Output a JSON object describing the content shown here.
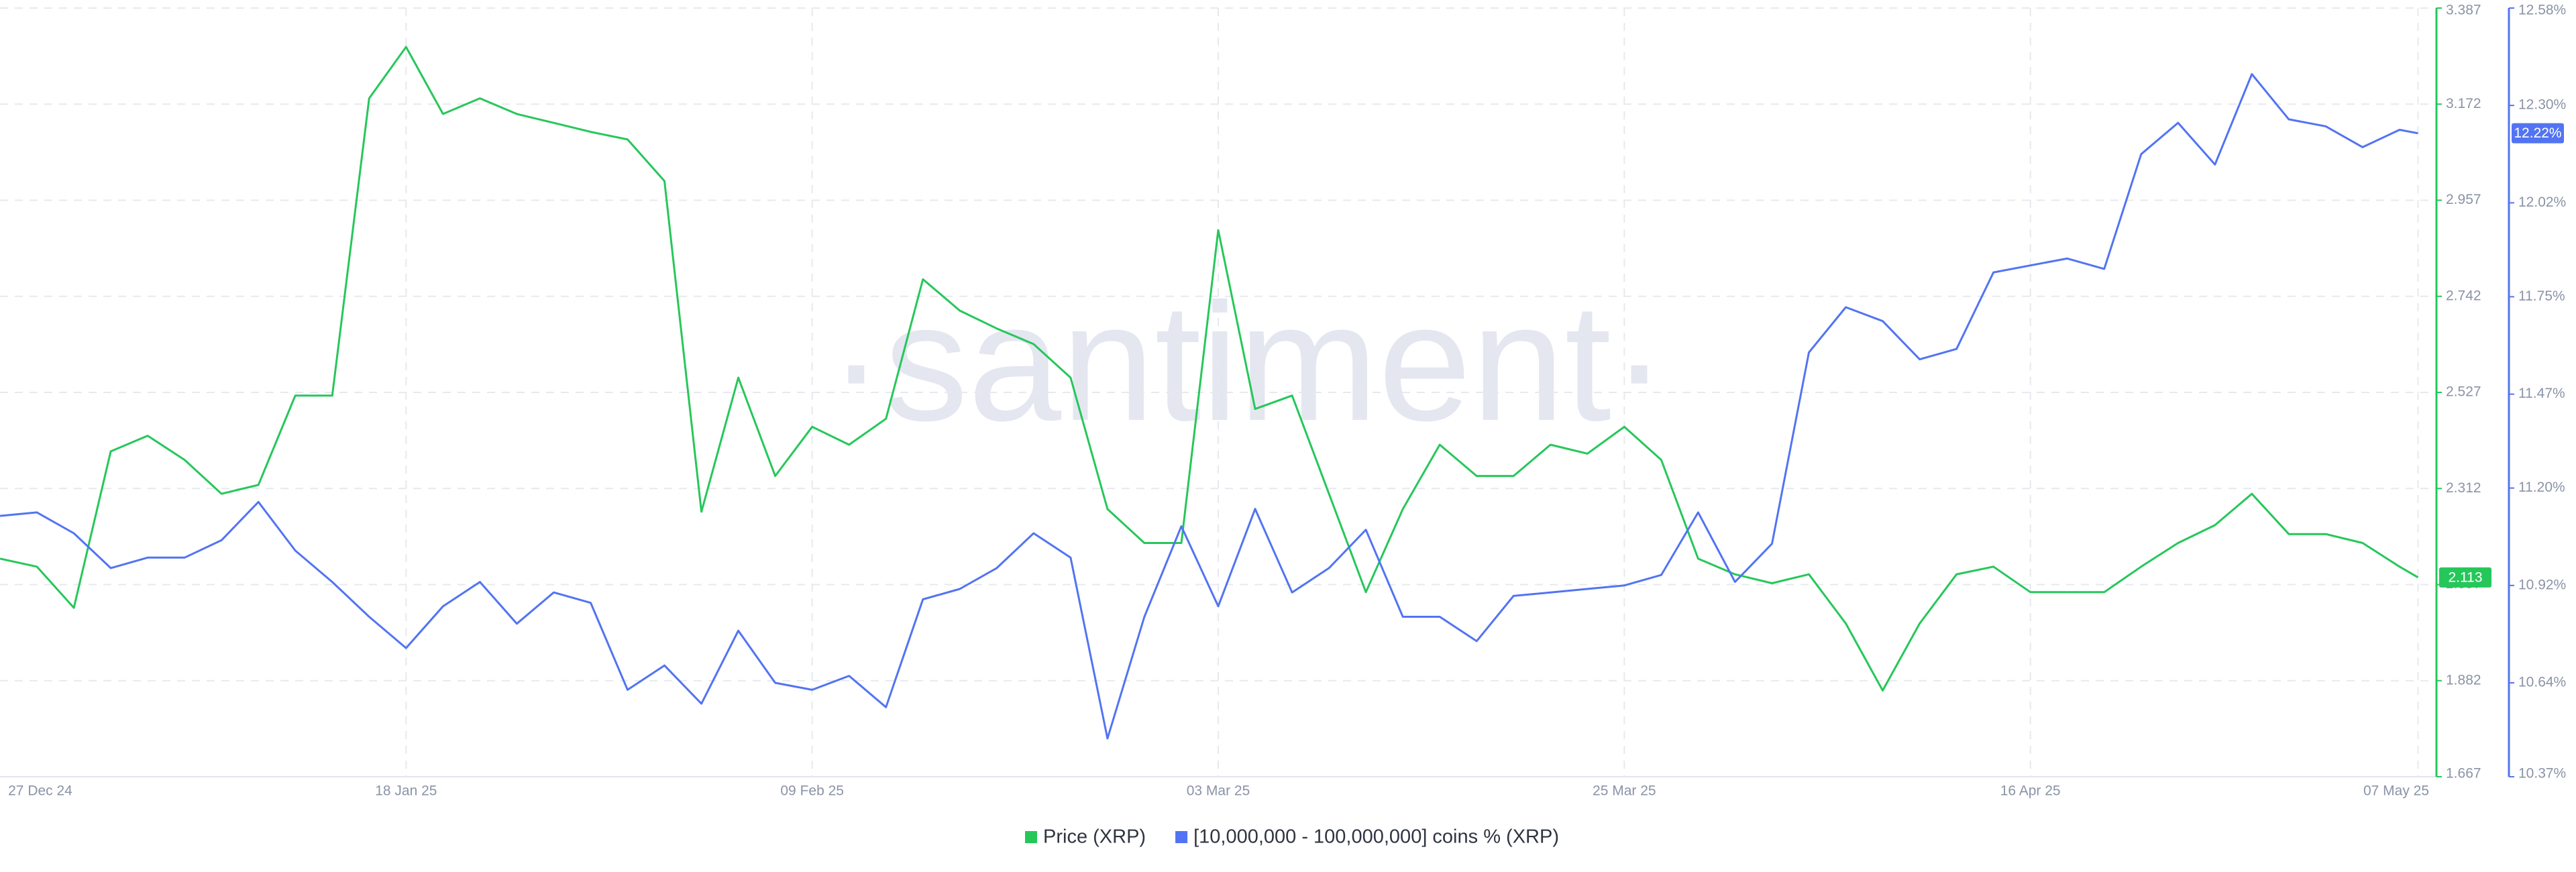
{
  "chart_data": {
    "type": "line",
    "watermark": "·santiment·",
    "x": [
      "2024-12-27",
      "2024-12-29",
      "2024-12-31",
      "2025-01-02",
      "2025-01-04",
      "2025-01-06",
      "2025-01-08",
      "2025-01-10",
      "2025-01-12",
      "2025-01-14",
      "2025-01-16",
      "2025-01-18",
      "2025-01-20",
      "2025-01-22",
      "2025-01-24",
      "2025-01-26",
      "2025-01-28",
      "2025-01-30",
      "2025-02-01",
      "2025-02-03",
      "2025-02-05",
      "2025-02-07",
      "2025-02-09",
      "2025-02-11",
      "2025-02-13",
      "2025-02-15",
      "2025-02-17",
      "2025-02-19",
      "2025-02-21",
      "2025-02-23",
      "2025-02-25",
      "2025-02-27",
      "2025-03-01",
      "2025-03-03",
      "2025-03-05",
      "2025-03-07",
      "2025-03-09",
      "2025-03-11",
      "2025-03-13",
      "2025-03-15",
      "2025-03-17",
      "2025-03-19",
      "2025-03-21",
      "2025-03-23",
      "2025-03-25",
      "2025-03-27",
      "2025-03-29",
      "2025-03-31",
      "2025-04-02",
      "2025-04-04",
      "2025-04-06",
      "2025-04-08",
      "2025-04-10",
      "2025-04-12",
      "2025-04-14",
      "2025-04-16",
      "2025-04-18",
      "2025-04-20",
      "2025-04-22",
      "2025-04-24",
      "2025-04-26",
      "2025-04-28",
      "2025-04-30",
      "2025-05-02",
      "2025-05-04",
      "2025-05-06",
      "2025-05-07"
    ],
    "xlim": [
      "2024-12-27",
      "2025-05-08"
    ],
    "xticks": [
      {
        "value": "2024-12-27",
        "label": "27 Dec 24"
      },
      {
        "value": "2025-01-18",
        "label": "18 Jan 25"
      },
      {
        "value": "2025-02-09",
        "label": "09 Feb 25"
      },
      {
        "value": "2025-03-03",
        "label": "03 Mar 25"
      },
      {
        "value": "2025-03-25",
        "label": "25 Mar 25"
      },
      {
        "value": "2025-04-16",
        "label": "16 Apr 25"
      },
      {
        "value": "2025-05-07",
        "label": "07 May 25"
      }
    ],
    "ylim": [
      1.667,
      3.387
    ],
    "yticks": [
      1.667,
      1.882,
      2.097,
      2.312,
      2.527,
      2.742,
      2.957,
      3.172,
      3.387
    ],
    "y2lim": [
      10.37,
      12.58
    ],
    "y2ticks": [
      {
        "value": 10.37,
        "label": "10.37%"
      },
      {
        "value": 10.64,
        "label": "10.64%"
      },
      {
        "value": 10.92,
        "label": "10.92%"
      },
      {
        "value": 11.2,
        "label": "11.20%"
      },
      {
        "value": 11.47,
        "label": "11.47%"
      },
      {
        "value": 11.75,
        "label": "11.75%"
      },
      {
        "value": 12.02,
        "label": "12.02%"
      },
      {
        "value": 12.3,
        "label": "12.30%"
      },
      {
        "value": 12.58,
        "label": "12.58%"
      }
    ],
    "grid": true,
    "legend": "bottom",
    "series": [
      {
        "name": "Price (XRP)",
        "color": "#26c75a",
        "last_label": "2.113",
        "values": [
          2.155,
          2.137,
          2.045,
          2.395,
          2.43,
          2.376,
          2.3,
          2.32,
          2.52,
          2.52,
          3.185,
          3.3,
          3.15,
          3.185,
          3.15,
          3.13,
          3.11,
          3.093,
          3.0,
          2.26,
          2.56,
          2.34,
          2.45,
          2.41,
          2.468,
          2.78,
          2.71,
          2.67,
          2.635,
          2.56,
          2.266,
          2.19,
          2.19,
          2.89,
          2.49,
          2.52,
          2.3,
          2.08,
          2.266,
          2.41,
          2.34,
          2.34,
          2.41,
          2.39,
          2.45,
          2.376,
          2.155,
          2.12,
          2.1,
          2.12,
          2.01,
          1.86,
          2.01,
          2.12,
          2.137,
          2.08,
          2.08,
          2.08,
          2.137,
          2.19,
          2.23,
          2.3,
          2.21,
          2.21,
          2.19,
          2.137,
          2.113
        ]
      },
      {
        "name": "[10,000,000 - 100,000,000] coins % (XRP)",
        "color": "#5274f2",
        "axis": "y2",
        "last_label": "12.22%",
        "values": [
          11.12,
          11.13,
          11.07,
          10.97,
          11.0,
          11.0,
          11.05,
          11.16,
          11.02,
          10.93,
          10.83,
          10.74,
          10.86,
          10.93,
          10.81,
          10.9,
          10.87,
          10.62,
          10.69,
          10.58,
          10.79,
          10.64,
          10.62,
          10.66,
          10.57,
          10.88,
          10.91,
          10.97,
          11.07,
          11.0,
          10.48,
          10.83,
          11.09,
          10.86,
          11.14,
          10.9,
          10.97,
          11.08,
          10.83,
          10.83,
          10.76,
          10.89,
          10.9,
          10.91,
          10.92,
          10.95,
          11.13,
          10.93,
          11.04,
          11.59,
          11.72,
          11.68,
          11.57,
          11.6,
          11.82,
          11.84,
          11.86,
          11.83,
          12.16,
          12.25,
          12.13,
          12.39,
          12.26,
          12.24,
          12.18,
          12.23,
          12.22
        ]
      }
    ]
  }
}
